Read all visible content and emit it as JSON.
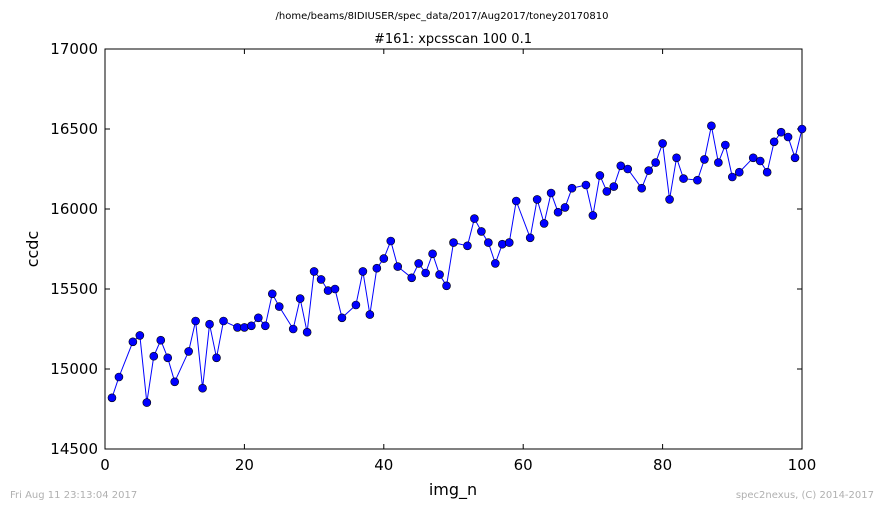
{
  "figure": {
    "suptitle": "/home/beams/8IDIUSER/spec_data/2017/Aug2017/toney20170810",
    "footer_left": "Fri Aug 11 23:13:04 2017",
    "footer_right": "spec2nexus, (C) 2014-2017"
  },
  "chart_data": {
    "type": "line",
    "title": "#161: xpcsscan 100 0.1",
    "xlabel": "img_n",
    "ylabel": "ccdc",
    "xlim": [
      0,
      100
    ],
    "ylim": [
      14500,
      17000
    ],
    "xticks": [
      0,
      20,
      40,
      60,
      80,
      100
    ],
    "yticks": [
      14500,
      15000,
      15500,
      16000,
      16500,
      17000
    ],
    "grid": false,
    "series_color": "#0000ff",
    "marker": "circle",
    "series": [
      {
        "x": [
          1,
          2,
          4,
          5,
          6,
          7,
          8,
          9,
          10,
          12,
          13,
          14,
          15,
          16,
          17,
          19,
          20,
          21,
          22,
          23,
          24,
          25,
          27,
          28,
          29,
          30,
          31,
          32,
          33,
          34,
          36,
          37,
          38,
          39,
          40,
          41,
          42,
          44,
          45,
          46,
          47,
          48,
          49,
          50,
          52,
          53,
          54,
          55,
          56,
          57,
          58,
          59,
          61,
          62,
          63,
          64,
          65,
          66,
          67,
          69,
          70,
          71,
          72,
          73,
          74,
          75,
          77,
          78,
          79,
          80,
          81,
          82,
          83,
          85,
          86,
          87,
          88,
          89,
          90,
          91,
          93,
          94,
          95,
          96,
          97,
          98,
          99,
          100
        ],
        "y": [
          14820,
          14950,
          15170,
          15210,
          14790,
          15080,
          15180,
          15070,
          14920,
          15110,
          15300,
          14880,
          15280,
          15070,
          15300,
          15260,
          15260,
          15270,
          15320,
          15270,
          15470,
          15390,
          15250,
          15440,
          15230,
          15610,
          15560,
          15490,
          15500,
          15320,
          15400,
          15610,
          15340,
          15630,
          15690,
          15800,
          15640,
          15570,
          15660,
          15600,
          15720,
          15590,
          15520,
          15790,
          15770,
          15940,
          15860,
          15790,
          15660,
          15780,
          15790,
          16050,
          15820,
          16060,
          15910,
          16100,
          15980,
          16010,
          16130,
          16150,
          15960,
          16210,
          16110,
          16140,
          16270,
          16250,
          16130,
          16240,
          16290,
          16410,
          16060,
          16320,
          16190,
          16180,
          16310,
          16520,
          16290,
          16400,
          16200,
          16230,
          16320,
          16300,
          16230,
          16420,
          16480,
          16450,
          16320,
          16500
        ]
      }
    ]
  }
}
